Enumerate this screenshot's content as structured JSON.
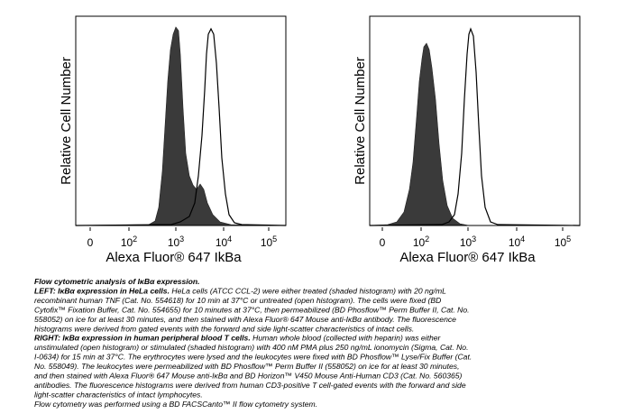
{
  "panels": [
    {
      "y_label": "Relative Cell Number",
      "x_label": "Alexa Fluor® 647 IkBa",
      "x_ticks": [
        {
          "base": "0",
          "exp": ""
        },
        {
          "base": "10",
          "exp": "2"
        },
        {
          "base": "10",
          "exp": "3"
        },
        {
          "base": "10",
          "exp": "4"
        },
        {
          "base": "10",
          "exp": "5"
        }
      ]
    },
    {
      "y_label": "Relative Cell Number",
      "x_label": "Alexa Fluor® 647 IkBa",
      "x_ticks": [
        {
          "base": "0",
          "exp": ""
        },
        {
          "base": "10",
          "exp": "2"
        },
        {
          "base": "10",
          "exp": "3"
        },
        {
          "base": "10",
          "exp": "4"
        },
        {
          "base": "10",
          "exp": "5"
        }
      ]
    }
  ],
  "caption": [
    {
      "bold": "Flow cytometric analysis of IκBα expression.",
      "text": ""
    },
    {
      "bold": "LEFT: IκBα expression in HeLa cells.",
      "text": " HeLa cells (ATCC CCL-2) were either treated (shaded histogram) with 20 ng/mL"
    },
    {
      "bold": "",
      "text": "recombinant human TNF (Cat. No. 554618) for 10 min at 37°C or untreated (open histogram). The cells were fixed (BD"
    },
    {
      "bold": "",
      "text": "Cytofix™ Fixation Buffer, Cat. No. 554655) for 10 minutes at 37°C, then permeabilized (BD Phosflow™ Perm Buffer II, Cat. No."
    },
    {
      "bold": "",
      "text": "558052) on ice for at least 30 minutes, and then stained with Alexa Fluor® 647 Mouse anti-IκBα antibody. The fluorescence"
    },
    {
      "bold": "",
      "text": "histograms were derived from gated events with the forward and side light-scatter characteristics of intact cells."
    },
    {
      "bold": "RIGHT: IκBα expression in human peripheral blood T cells.",
      "text": " Human whole blood (collected with heparin) was either"
    },
    {
      "bold": "",
      "text": "unstimulated (open histogram) or stimulated (shaded histogram) with 400 nM PMA plus 250 ng/mL ionomycin (Sigma, Cat. No."
    },
    {
      "bold": "",
      "text": "I-0634) for 15 min at 37°C. The erythrocytes were lysed and the leukocytes were fixed with BD Phosflow™ Lyse/Fix Buffer (Cat."
    },
    {
      "bold": "",
      "text": "No. 558049). The leukocytes were permeabilized with BD Phosflow™ Perm Buffer II (558052) on ice for at least 30 minutes,"
    },
    {
      "bold": "",
      "text": "and then stained with Alexa Fluor® 647 Mouse anti-IκBα and BD Horizon™ V450 Mouse Anti-Human CD3 (Cat. No. 560365)"
    },
    {
      "bold": "",
      "text": "antibodies. The fluorescence histograms were derived from human CD3-positive T cell-gated events with the forward and side"
    },
    {
      "bold": "",
      "text": "light-scatter characteristics of intact lymphocytes."
    },
    {
      "bold": "",
      "text": "Flow cytometry was performed using a BD FACSCanto™ II flow cytometry system."
    }
  ]
}
